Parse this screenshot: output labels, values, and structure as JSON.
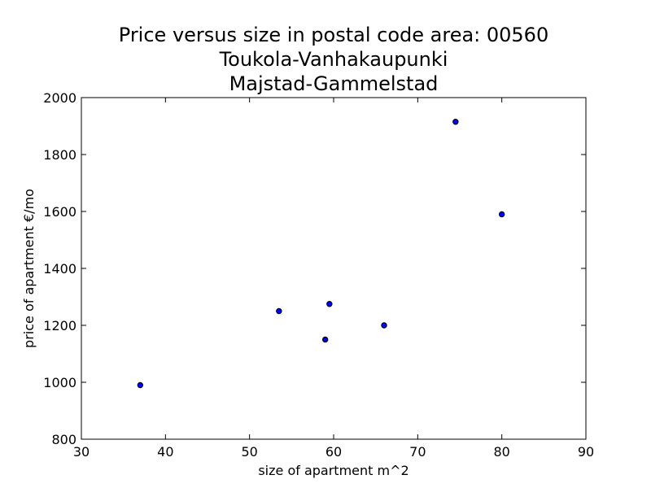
{
  "chart_data": {
    "type": "scatter",
    "title": "Price versus size in postal code area: 00560\nToukola-Vanhakaupunki\nMajstad-Gammelstad",
    "title_lines": [
      "Price versus size in postal code area: 00560",
      "Toukola-Vanhakaupunki",
      "Majstad-Gammelstad"
    ],
    "xlabel": "size of apartment m^2",
    "ylabel": "price of apartment €/mo",
    "xlim": [
      30,
      90
    ],
    "ylim": [
      800,
      2000
    ],
    "xticks": [
      30,
      40,
      50,
      60,
      70,
      80,
      90
    ],
    "yticks": [
      800,
      1000,
      1200,
      1400,
      1600,
      1800,
      2000
    ],
    "grid": false,
    "marker_color": "#0000ff",
    "marker_edge_color": "#000000",
    "x": [
      37,
      53.5,
      59,
      59.5,
      66,
      74.5,
      80
    ],
    "y": [
      990,
      1250,
      1150,
      1275,
      1200,
      1915,
      1590
    ]
  }
}
